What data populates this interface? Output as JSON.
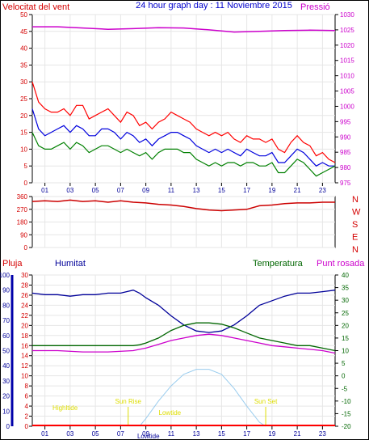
{
  "header": {
    "left_title": "Velocitat del vent",
    "center_title": "24 hour graph day : 11 Noviembre 2015",
    "right_title": "Pressió"
  },
  "x_ticks": [
    "01",
    "03",
    "05",
    "07",
    "09",
    "11",
    "13",
    "15",
    "17",
    "19",
    "21",
    "23"
  ],
  "colors": {
    "frame": "#000000",
    "grid": "#e6e6e6",
    "wind_left": "#d40000",
    "pressure": "#cc00cc",
    "gust": "#ff0000",
    "avg": "#0000dd",
    "min": "#008000",
    "direction": "#cc0000",
    "humidity": "#000099",
    "temperature": "#006600",
    "dewpoint": "#cc00cc",
    "rain": "#ff0000",
    "solar": "#99ccee",
    "tide": "#dddd00"
  },
  "chart_data": [
    {
      "type": "line",
      "name_left_axis": "Velocitat del vent",
      "name_right_axis": "Pressió",
      "title": "24 hour graph day : 11 Noviembre 2015",
      "y_left_ticks": [
        "0",
        "5",
        "10",
        "15",
        "20",
        "25",
        "30",
        "35",
        "40",
        "45",
        "50"
      ],
      "y_left_range": [
        0,
        50
      ],
      "y_right_ticks": [
        "975",
        "980",
        "985",
        "990",
        "995",
        "1000",
        "1005",
        "1010",
        "1015",
        "1020",
        "1025",
        "1030"
      ],
      "y_right_range": [
        975,
        1030
      ],
      "x_range": [
        0,
        24
      ],
      "series": [
        {
          "key": "gust",
          "x": [
            0,
            0.5,
            1,
            1.5,
            2,
            2.5,
            3,
            3.5,
            4,
            4.5,
            5,
            5.5,
            6,
            6.5,
            7,
            7.5,
            8,
            8.5,
            9,
            9.5,
            10,
            10.5,
            11,
            11.5,
            12,
            12.5,
            13,
            13.5,
            14,
            14.5,
            15,
            15.5,
            16,
            16.5,
            17,
            17.5,
            18,
            18.5,
            19,
            19.5,
            20,
            20.5,
            21,
            21.5,
            22,
            22.5,
            23,
            23.5,
            24
          ],
          "y": [
            30,
            24,
            22,
            21,
            21,
            22,
            20,
            23,
            23,
            19,
            20,
            21,
            22,
            20,
            18,
            21,
            20,
            17,
            18,
            16,
            18,
            19,
            21,
            20,
            19,
            18,
            16,
            15,
            14,
            15,
            14,
            15,
            13,
            12,
            14,
            13,
            13,
            12,
            13,
            10,
            9,
            12,
            14,
            12,
            11,
            8,
            9,
            7,
            6
          ]
        },
        {
          "key": "avg",
          "x": [
            0,
            0.5,
            1,
            1.5,
            2,
            2.5,
            3,
            3.5,
            4,
            4.5,
            5,
            5.5,
            6,
            6.5,
            7,
            7.5,
            8,
            8.5,
            9,
            9.5,
            10,
            10.5,
            11,
            11.5,
            12,
            12.5,
            13,
            13.5,
            14,
            14.5,
            15,
            15.5,
            16,
            16.5,
            17,
            17.5,
            18,
            18.5,
            19,
            19.5,
            20,
            20.5,
            21,
            21.5,
            22,
            22.5,
            23,
            23.5,
            24
          ],
          "y": [
            22,
            16,
            14,
            15,
            16,
            17,
            15,
            17,
            16,
            14,
            14,
            16,
            16,
            15,
            13,
            15,
            14,
            12,
            13,
            11,
            13,
            14,
            15,
            15,
            14,
            13,
            11,
            10,
            9,
            10,
            9,
            10,
            9,
            8,
            10,
            9,
            8,
            8,
            9,
            6,
            6,
            8,
            10,
            9,
            7,
            5,
            6,
            5,
            5
          ]
        },
        {
          "key": "min",
          "x": [
            0,
            0.5,
            1,
            1.5,
            2,
            2.5,
            3,
            3.5,
            4,
            4.5,
            5,
            5.5,
            6,
            6.5,
            7,
            7.5,
            8,
            8.5,
            9,
            9.5,
            10,
            10.5,
            11,
            11.5,
            12,
            12.5,
            13,
            13.5,
            14,
            14.5,
            15,
            15.5,
            16,
            16.5,
            17,
            17.5,
            18,
            18.5,
            19,
            19.5,
            20,
            20.5,
            21,
            21.5,
            22,
            22.5,
            23,
            23.5,
            24
          ],
          "y": [
            15,
            11,
            10,
            10,
            11,
            12,
            10,
            12,
            11,
            9,
            10,
            11,
            11,
            10,
            9,
            10,
            9,
            8,
            9,
            7,
            9,
            10,
            10,
            10,
            9,
            9,
            7,
            6,
            5,
            6,
            5,
            6,
            6,
            5,
            6,
            6,
            5,
            5,
            6,
            3,
            3,
            5,
            7,
            6,
            4,
            2,
            3,
            4,
            5
          ]
        },
        {
          "key": "pressure",
          "axis": "right",
          "x": [
            0,
            2,
            4,
            6,
            8,
            10,
            12,
            14,
            16,
            18,
            20,
            22,
            24
          ],
          "y": [
            1026,
            1026,
            1025.6,
            1025.2,
            1025.4,
            1025.7,
            1025.6,
            1025,
            1024.3,
            1024.5,
            1024.8,
            1024.9,
            1024.8
          ]
        }
      ]
    },
    {
      "type": "line",
      "name": "Direcció del vent",
      "y_left_ticks": [
        "0",
        "90",
        "180",
        "270",
        "360"
      ],
      "y_left_range": [
        0,
        360
      ],
      "right_labels": [
        "N",
        "W",
        "S",
        "E",
        "N"
      ],
      "x_range": [
        0,
        24
      ],
      "series": [
        {
          "key": "direction",
          "x": [
            0,
            1,
            2,
            3,
            4,
            5,
            6,
            7,
            8,
            9,
            10,
            11,
            12,
            13,
            14,
            15,
            16,
            17,
            18,
            19,
            20,
            21,
            22,
            23,
            24
          ],
          "y": [
            325,
            330,
            325,
            335,
            325,
            330,
            320,
            330,
            320,
            315,
            305,
            300,
            290,
            275,
            265,
            260,
            265,
            270,
            295,
            300,
            310,
            315,
            315,
            320,
            320
          ]
        }
      ]
    },
    {
      "type": "line",
      "labels": {
        "rain": "Pluja",
        "humidity": "Humitat",
        "temperature": "Temperatura",
        "dewpoint": "Punt rosada"
      },
      "y_rain_ticks": [
        "0",
        "2",
        "4",
        "6",
        "8",
        "10",
        "12",
        "14",
        "16",
        "18",
        "20",
        "22",
        "24",
        "26",
        "28",
        "30"
      ],
      "y_rain_range": [
        0,
        30
      ],
      "y_humidity_ticks": [
        "0",
        "10",
        "20",
        "30",
        "40",
        "50",
        "60",
        "70",
        "80",
        "90",
        "100"
      ],
      "y_humidity_range": [
        0,
        100
      ],
      "y_temp_ticks": [
        "-20",
        "-15",
        "-10",
        "-5",
        "0",
        "5",
        "10",
        "15",
        "20",
        "25",
        "30",
        "35",
        "40"
      ],
      "y_temp_range": [
        -20,
        40
      ],
      "annotations": [
        "Sun Rise",
        "Sun Set",
        "Highltide",
        "Lowtide",
        "Lowtide"
      ],
      "x_range": [
        0,
        24
      ],
      "series": [
        {
          "key": "humidity",
          "axis": "humidity",
          "x": [
            0,
            1,
            2,
            3,
            4,
            5,
            6,
            7,
            8,
            8.5,
            9,
            10,
            11,
            12,
            13,
            14,
            15,
            16,
            17,
            18,
            19,
            20,
            21,
            22,
            23,
            24
          ],
          "y": [
            88,
            87,
            87,
            86,
            87,
            87,
            88,
            88,
            90,
            88,
            85,
            80,
            73,
            67,
            63,
            62,
            63,
            67,
            73,
            80,
            83,
            86,
            88,
            88,
            89,
            90
          ]
        },
        {
          "key": "temperature",
          "axis": "temp",
          "x": [
            0,
            2,
            4,
            6,
            8,
            8.5,
            9,
            10,
            11,
            12,
            13,
            14,
            15,
            16,
            17,
            18,
            19,
            20,
            21,
            22,
            23,
            24
          ],
          "y": [
            12,
            12,
            12,
            12,
            12,
            12.3,
            13,
            15,
            18,
            20,
            21,
            21,
            20.5,
            19,
            17,
            15,
            14,
            13,
            12,
            12,
            11,
            10
          ]
        },
        {
          "key": "dewpoint",
          "axis": "temp",
          "x": [
            0,
            2,
            4,
            6,
            8,
            8.5,
            9,
            10,
            11,
            12,
            13,
            14,
            15,
            16,
            17,
            18,
            19,
            20,
            21,
            22,
            23,
            24
          ],
          "y": [
            10,
            10,
            9.5,
            9.5,
            10,
            10.5,
            11,
            12.5,
            14,
            15,
            16,
            16.5,
            16,
            15,
            14,
            13,
            12,
            11.5,
            11,
            10.5,
            10,
            9
          ]
        },
        {
          "key": "solar",
          "axis": "rain",
          "x": [
            8.5,
            9,
            10,
            11,
            12,
            13,
            14,
            15,
            16,
            17,
            18,
            18.5
          ],
          "y": [
            0,
            1.5,
            5,
            8,
            10.3,
            11.3,
            11.3,
            10.3,
            7.5,
            4,
            0.8,
            0
          ]
        }
      ]
    }
  ],
  "bottom_labels": {
    "lowtide_center": "Lowtide"
  }
}
